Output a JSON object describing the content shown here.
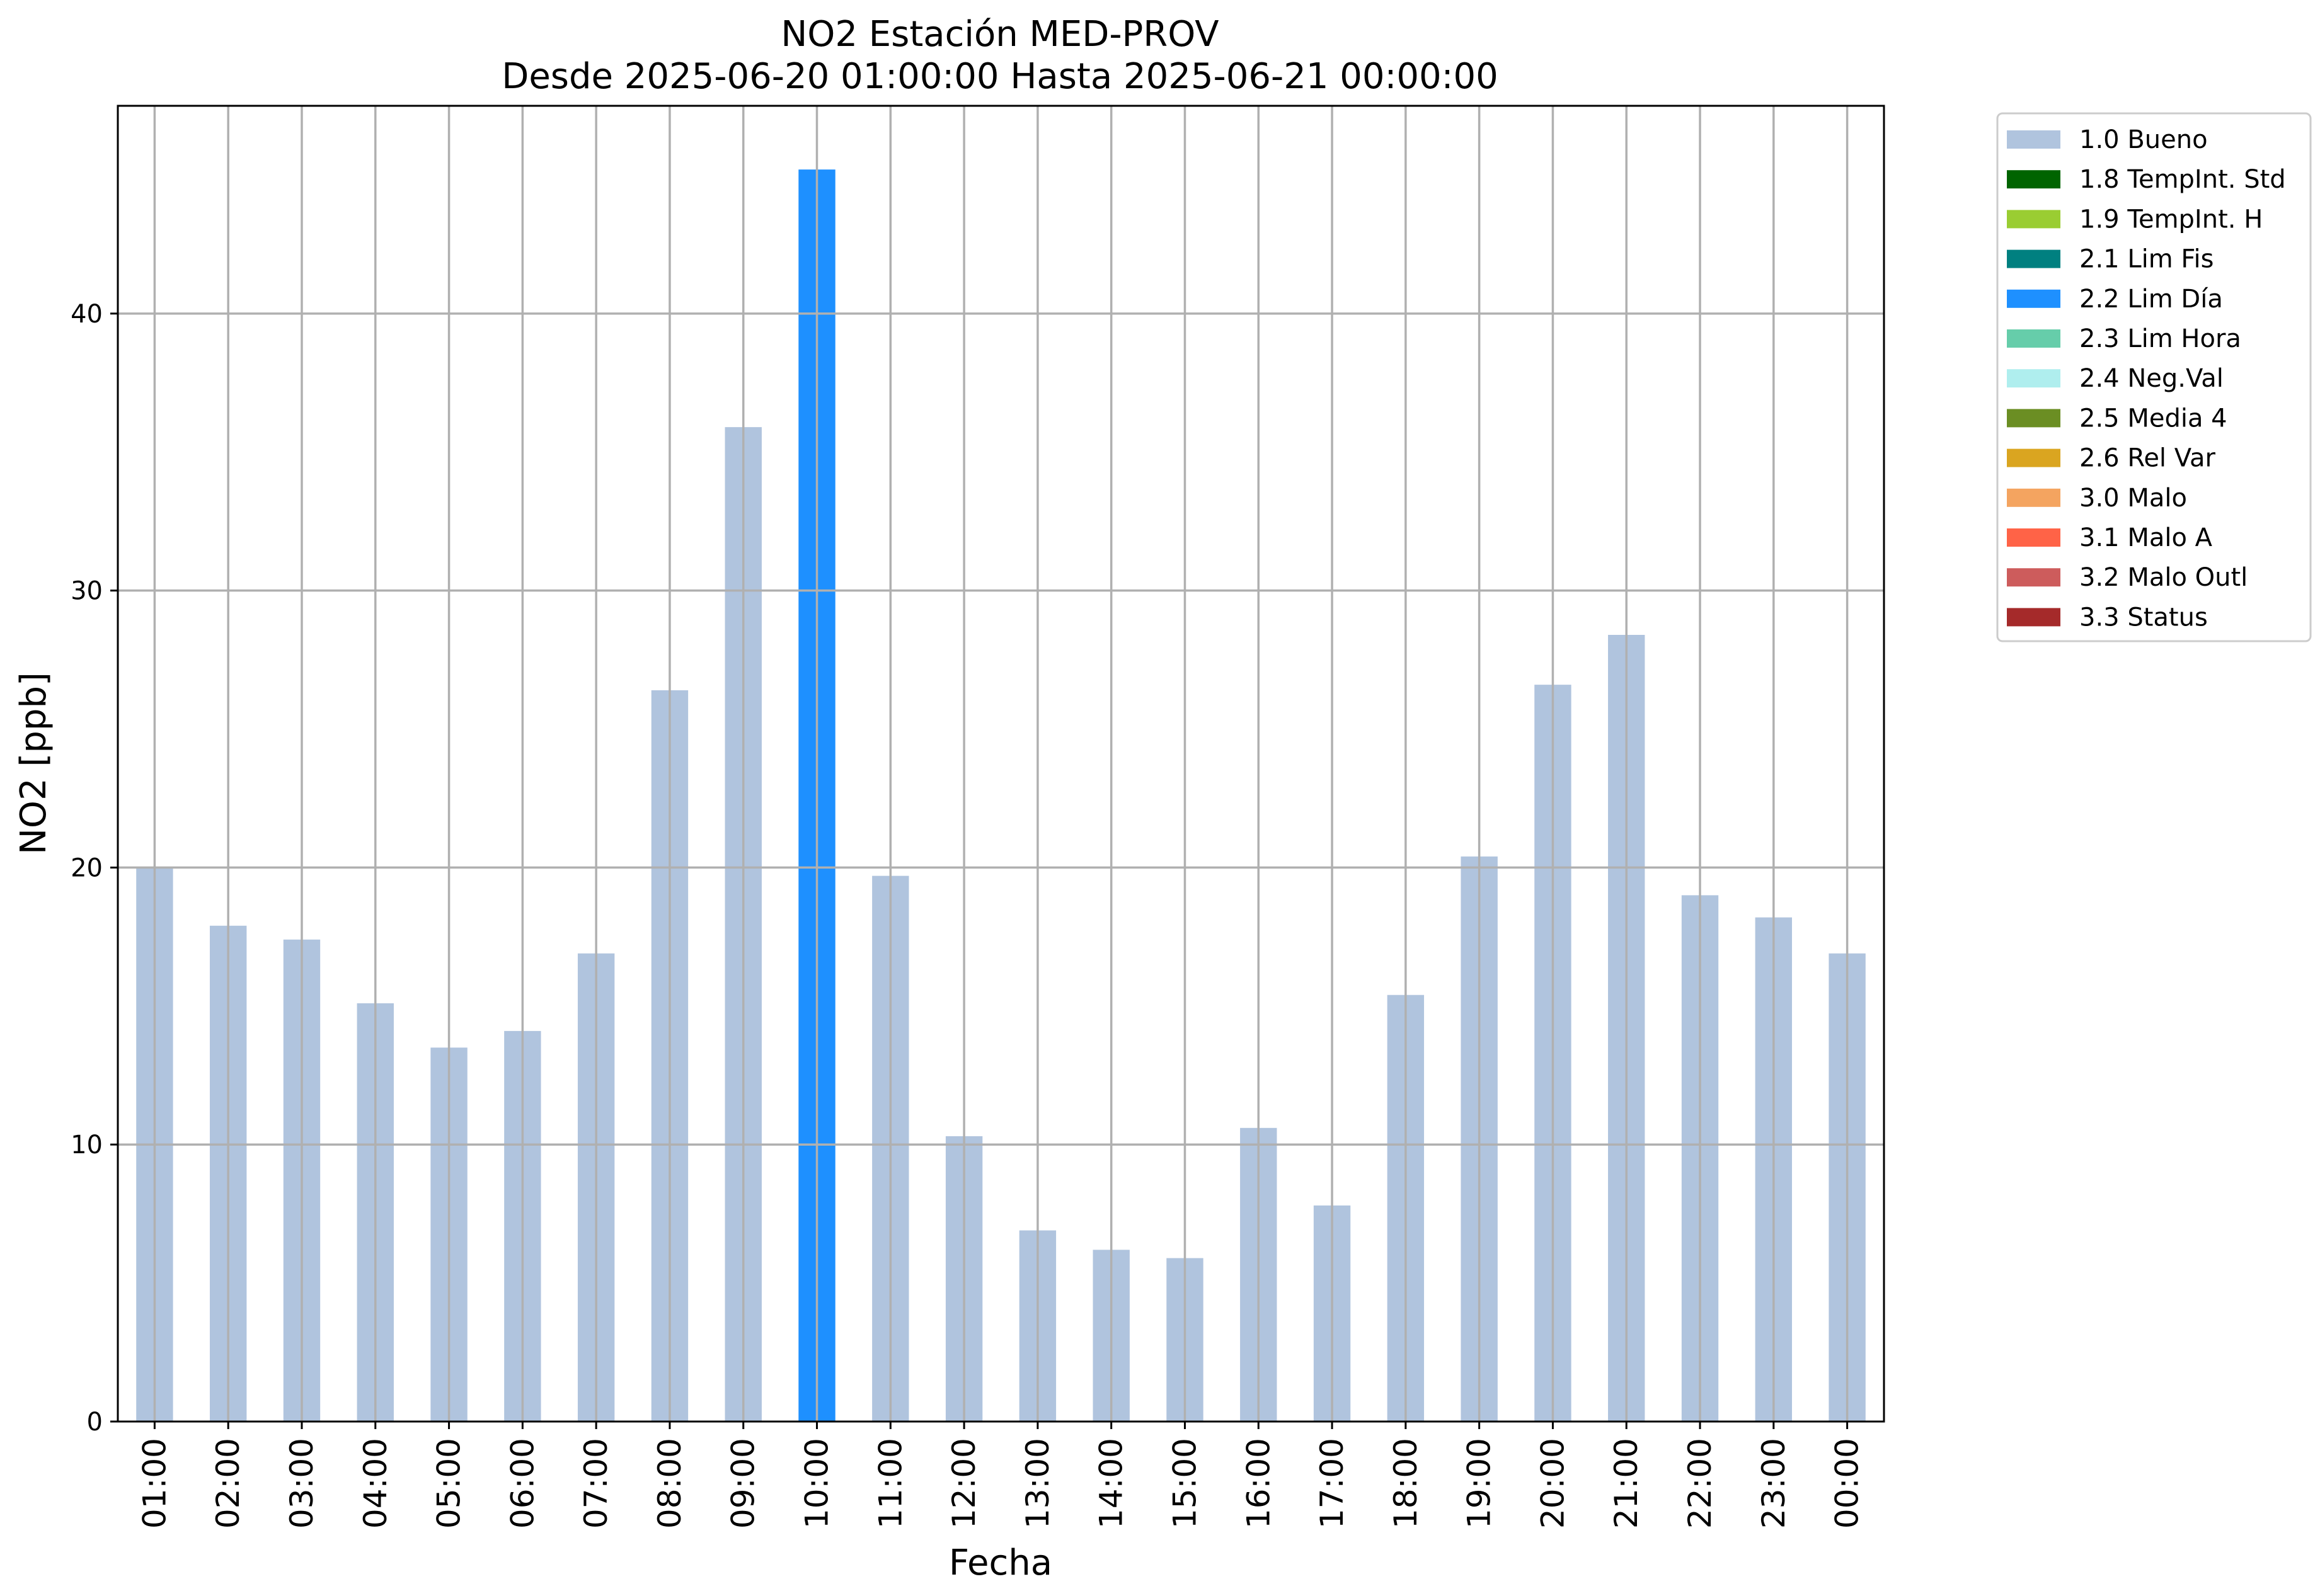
{
  "chart_data": {
    "type": "bar",
    "title": "NO2 Estación MED-PROV",
    "subtitle": "Desde 2025-06-20 01:00:00 Hasta 2025-06-21 00:00:00",
    "xlabel": "Fecha",
    "ylabel": "NO2 [ppb]",
    "ylim": [
      0,
      47.5
    ],
    "yticks": [
      0,
      10,
      20,
      30,
      40
    ],
    "grid": true,
    "legend_position": "outside-top-right",
    "categories": [
      "01:00",
      "02:00",
      "03:00",
      "04:00",
      "05:00",
      "06:00",
      "07:00",
      "08:00",
      "09:00",
      "10:00",
      "11:00",
      "12:00",
      "13:00",
      "14:00",
      "15:00",
      "16:00",
      "17:00",
      "18:00",
      "19:00",
      "20:00",
      "21:00",
      "22:00",
      "23:00",
      "00:00"
    ],
    "values": [
      20.0,
      17.9,
      17.4,
      15.1,
      13.5,
      14.1,
      16.9,
      26.4,
      35.9,
      45.2,
      19.7,
      10.3,
      6.9,
      6.2,
      5.9,
      10.6,
      7.8,
      15.4,
      20.4,
      26.6,
      28.4,
      19.0,
      18.2,
      16.9
    ],
    "flags": [
      "1.0 Bueno",
      "1.0 Bueno",
      "1.0 Bueno",
      "1.0 Bueno",
      "1.0 Bueno",
      "1.0 Bueno",
      "1.0 Bueno",
      "1.0 Bueno",
      "1.0 Bueno",
      "2.2 Lim Día",
      "1.0 Bueno",
      "1.0 Bueno",
      "1.0 Bueno",
      "1.0 Bueno",
      "1.0 Bueno",
      "1.0 Bueno",
      "1.0 Bueno",
      "1.0 Bueno",
      "1.0 Bueno",
      "1.0 Bueno",
      "1.0 Bueno",
      "1.0 Bueno",
      "1.0 Bueno",
      "1.0 Bueno"
    ],
    "legend": [
      {
        "label": "1.0 Bueno",
        "color": "#b0c4de"
      },
      {
        "label": "1.8 TempInt. Std",
        "color": "#006400"
      },
      {
        "label": "1.9 TempInt. H",
        "color": "#9acd32"
      },
      {
        "label": "2.1 Lim Fis",
        "color": "#008080"
      },
      {
        "label": "2.2 Lim Día",
        "color": "#1e90ff"
      },
      {
        "label": "2.3 Lim Hora",
        "color": "#66cdaa"
      },
      {
        "label": "2.4 Neg.Val",
        "color": "#afeeee"
      },
      {
        "label": "2.5 Media 4",
        "color": "#6b8e23"
      },
      {
        "label": "2.6 Rel Var",
        "color": "#daa520"
      },
      {
        "label": "3.0 Malo",
        "color": "#f4a460"
      },
      {
        "label": "3.1 Malo A",
        "color": "#ff6347"
      },
      {
        "label": "3.2 Malo Outl",
        "color": "#cd5c5c"
      },
      {
        "label": "3.3 Status",
        "color": "#a52a2a"
      }
    ]
  }
}
